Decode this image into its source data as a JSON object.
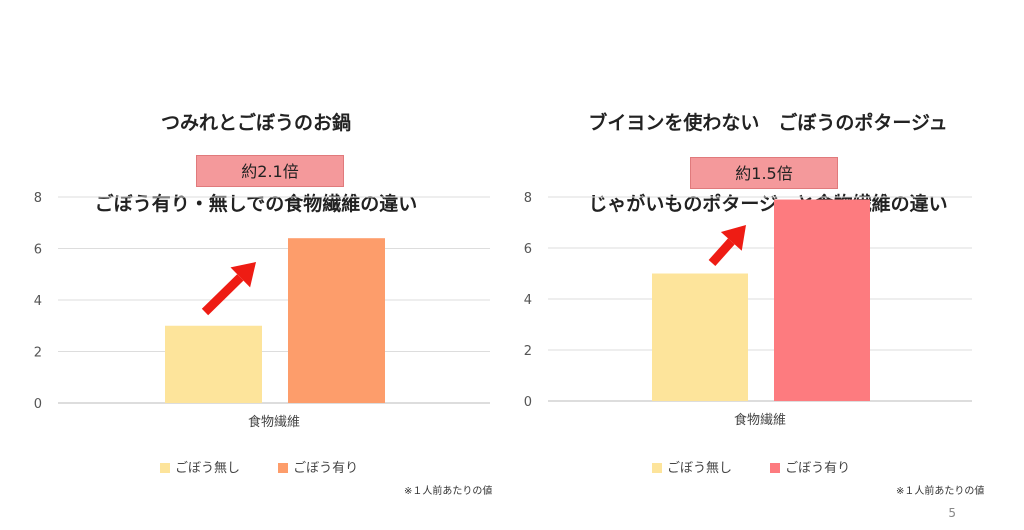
{
  "chart_data": [
    {
      "type": "bar",
      "title_lines": [
        "つみれとごぼうのお鍋",
        "ごぼう有り・無しでの食物繊維の違い"
      ],
      "categories": [
        "食物繊維"
      ],
      "series": [
        {
          "name": "ごぼう無し",
          "values": [
            3.0
          ],
          "color": "#fde49b"
        },
        {
          "name": "ごぼう有り",
          "values": [
            6.4
          ],
          "color": "#fd9d6b"
        }
      ],
      "ylim": [
        0,
        8
      ],
      "yticks": [
        0,
        2,
        4,
        6,
        8
      ],
      "grid": true,
      "legend": "bottom",
      "annotation": "約2.1倍",
      "footnote": "※１人前あたりの値"
    },
    {
      "type": "bar",
      "title_lines": [
        "ブイヨンを使わない　ごぼうのポタージュ",
        "じゃがいものポタージュと食物繊維の違い"
      ],
      "categories": [
        "食物繊維"
      ],
      "series": [
        {
          "name": "ごぼう無し",
          "values": [
            5.0
          ],
          "color": "#fde49b"
        },
        {
          "name": "ごぼう有り",
          "values": [
            7.9
          ],
          "color": "#fd7b7f"
        }
      ],
      "ylim": [
        0,
        8
      ],
      "yticks": [
        0,
        2,
        4,
        6,
        8
      ],
      "grid": true,
      "legend": "bottom",
      "annotation": "約1.5倍",
      "footnote": "※１人前あたりの値"
    }
  ],
  "arrow_color": "#ee1c14",
  "page_number": "5"
}
